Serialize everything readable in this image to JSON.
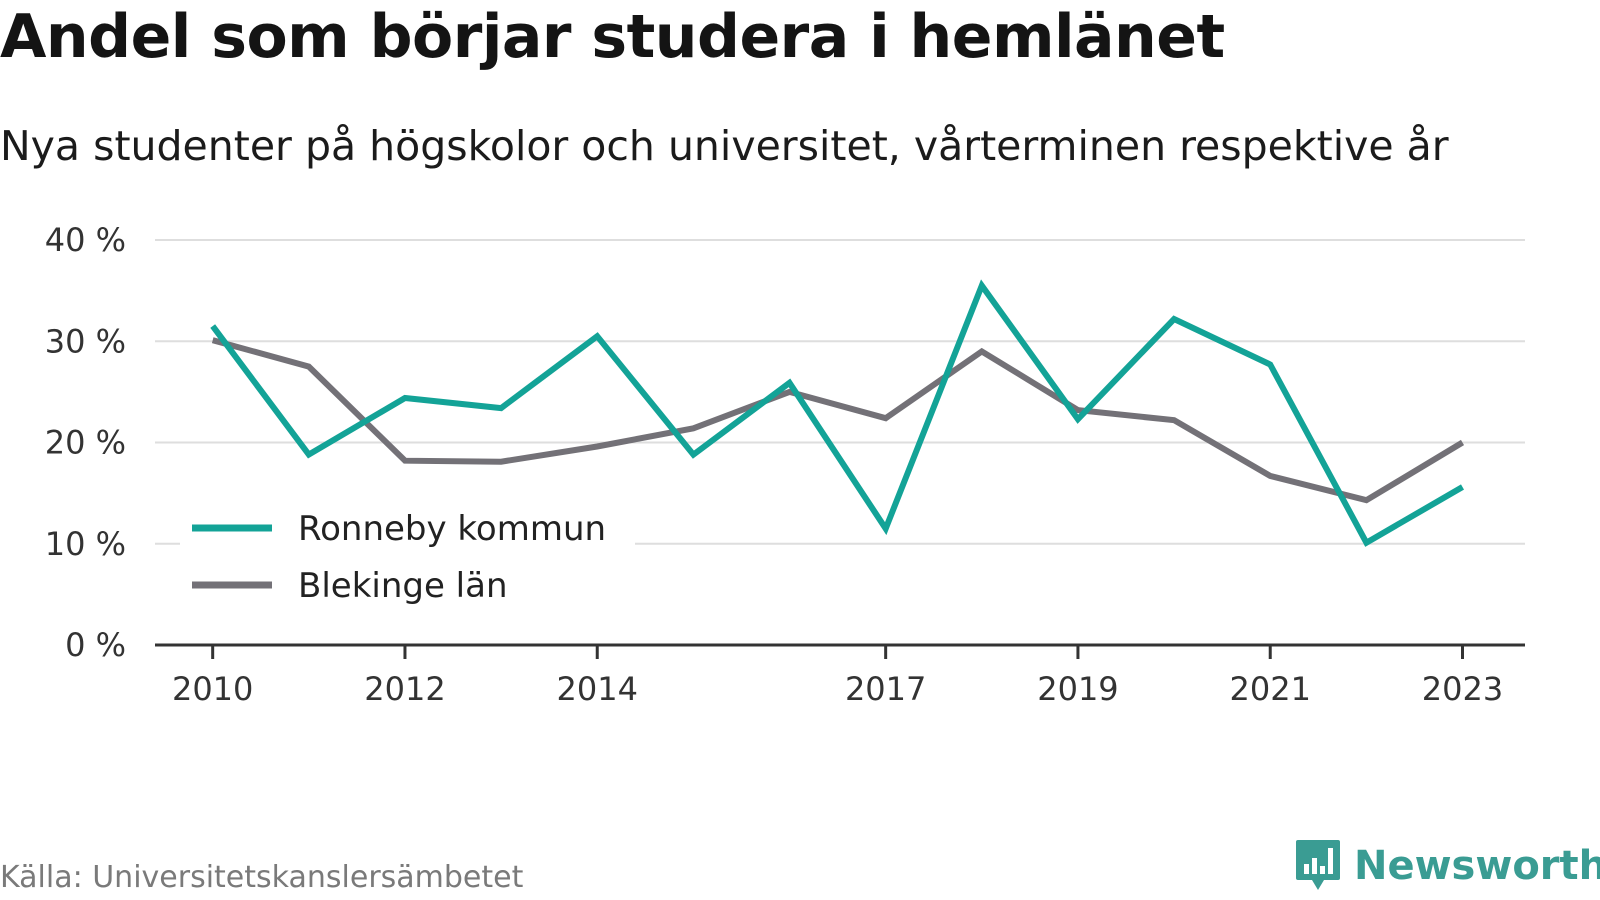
{
  "header": {
    "title": "Andel som börjar studera i hemlänet",
    "subtitle": "Nya studenter på högskolor och universitet, vårterminen respektive år"
  },
  "footer": {
    "source": "Källa: Universitetskanslersämbetet",
    "brand": "Newsworthy",
    "brand_icon": "bar-chart-speech-bubble-icon",
    "brand_color": "#3a9c93"
  },
  "chart_data": {
    "type": "line",
    "x": [
      2010,
      2011,
      2012,
      2013,
      2014,
      2015,
      2016,
      2017,
      2018,
      2019,
      2020,
      2021,
      2022,
      2023
    ],
    "xticks": [
      "2010",
      "2012",
      "2014",
      "2017",
      "2019",
      "2021",
      "2023"
    ],
    "xtick_values": [
      2010,
      2012,
      2014,
      2017,
      2019,
      2021,
      2023
    ],
    "yticks": [
      "0 %",
      "10 %",
      "20 %",
      "30 %",
      "40 %"
    ],
    "ytick_values": [
      0,
      10,
      20,
      30,
      40
    ],
    "ylim": [
      0,
      40
    ],
    "xlim": [
      2009.4,
      2023.65
    ],
    "grid": true,
    "legend_position": "bottom-left",
    "series": [
      {
        "name": "Ronneby kommun",
        "color": "#13a397",
        "values": [
          31.5,
          18.8,
          24.4,
          23.4,
          30.5,
          18.8,
          25.9,
          11.5,
          35.5,
          22.3,
          32.2,
          27.7,
          10.1,
          15.6
        ]
      },
      {
        "name": "Blekinge län",
        "color": "#737177",
        "values": [
          30.1,
          27.5,
          18.2,
          18.1,
          19.6,
          21.4,
          25.0,
          22.4,
          29.0,
          23.2,
          22.2,
          16.7,
          14.3,
          20.0
        ]
      }
    ]
  }
}
